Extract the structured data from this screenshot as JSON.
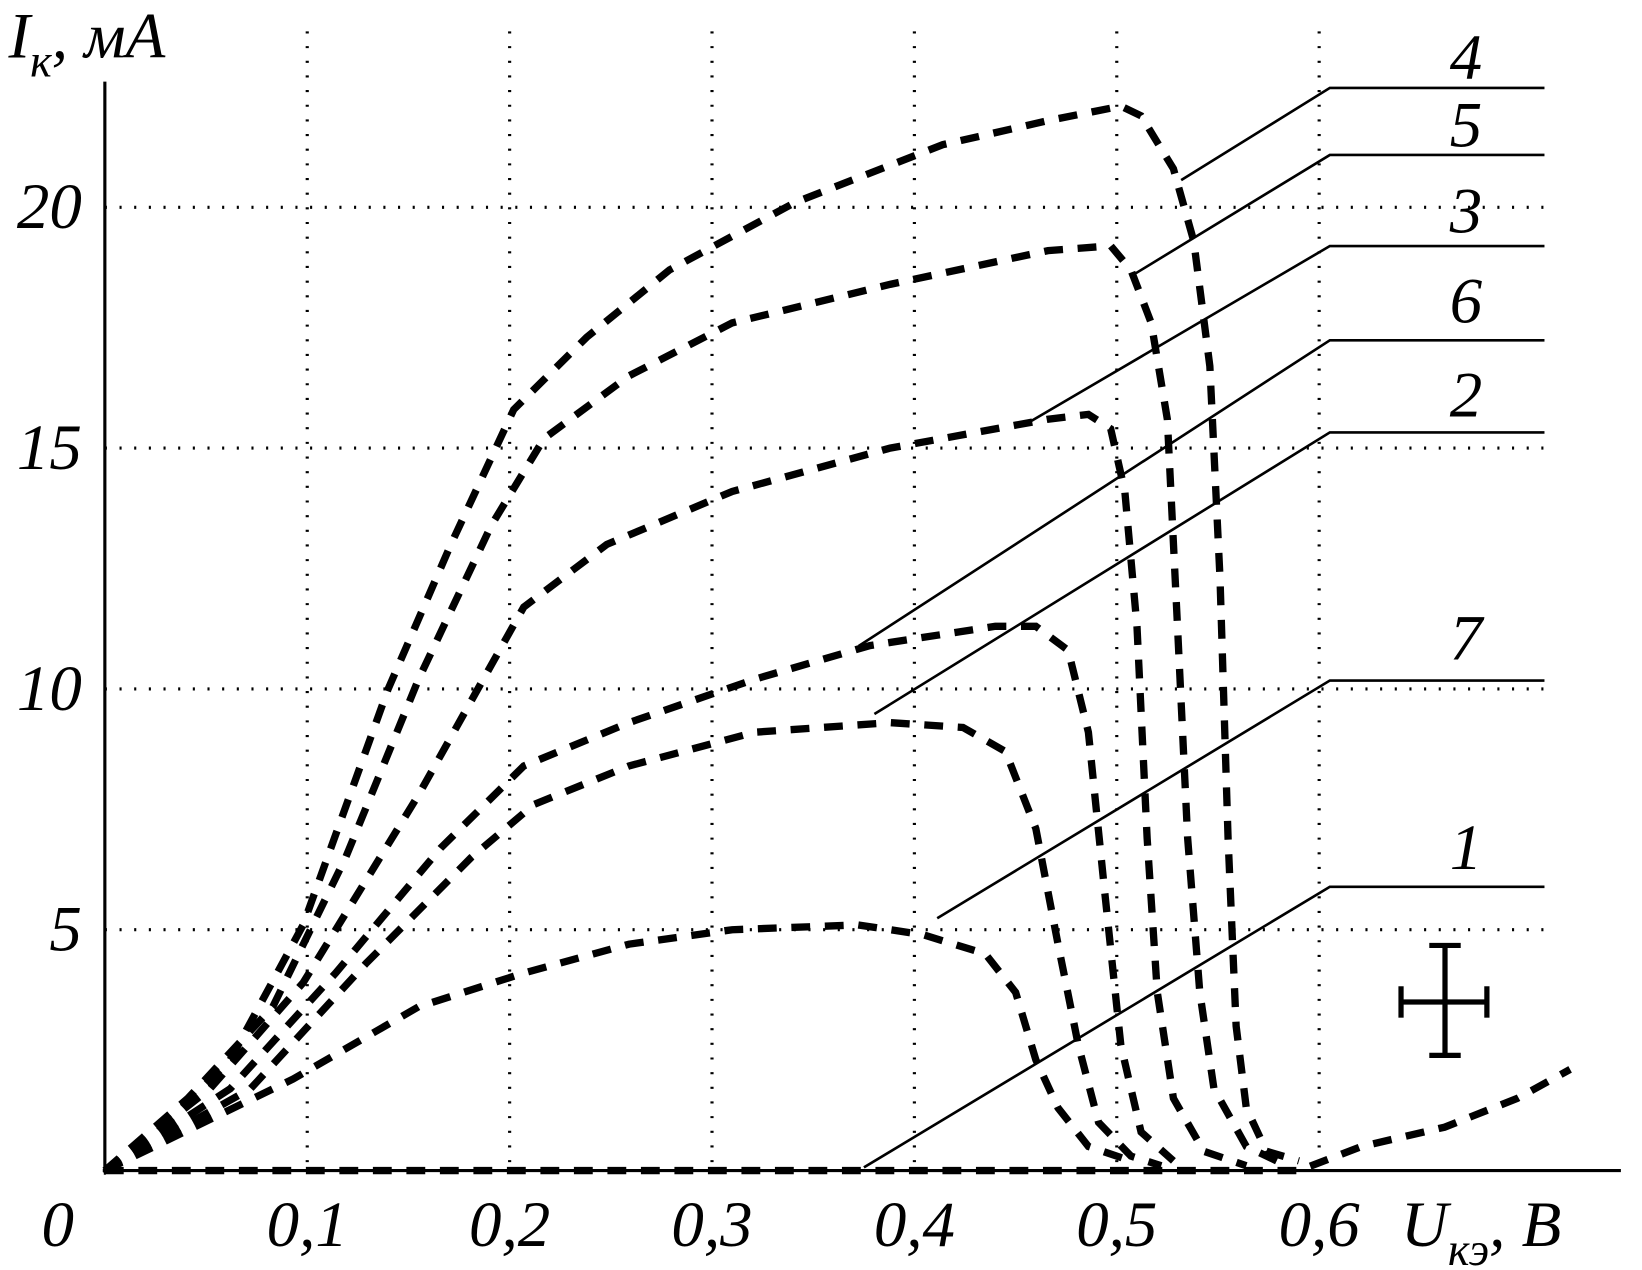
{
  "chart_data": {
    "type": "line",
    "ylabel": {
      "main": "I",
      "sub": "к",
      "unit": ", мА"
    },
    "xlabel": {
      "main": "U",
      "sub": "кэ",
      "unit": ", В"
    },
    "xlim": [
      0,
      0.75
    ],
    "ylim": [
      0,
      22.5
    ],
    "xticks": [
      0,
      {
        "value": 0.1,
        "label": "0,1"
      },
      {
        "value": 0.2,
        "label": "0,2"
      },
      {
        "value": 0.3,
        "label": "0,3"
      },
      {
        "value": 0.4,
        "label": "0,4"
      },
      {
        "value": 0.5,
        "label": "0,5"
      },
      {
        "value": 0.6,
        "label": "0,6"
      }
    ],
    "yticks": [
      5,
      10,
      15,
      20
    ],
    "grid": true,
    "dashed": true,
    "series": [
      {
        "name": "4",
        "color": "#000000",
        "x": [
          0,
          0.026,
          0.062,
          0.098,
          0.14,
          0.171,
          0.202,
          0.238,
          0.279,
          0.341,
          0.414,
          0.466,
          0.502,
          0.512,
          0.528,
          0.538,
          0.546,
          0.551,
          0.555,
          0.559,
          0.564,
          0.574,
          0.59
        ],
        "values": [
          0,
          0.8,
          2.3,
          5.1,
          10.0,
          13.0,
          15.8,
          17.3,
          18.7,
          20.1,
          21.3,
          21.8,
          22.1,
          21.9,
          20.8,
          19.3,
          16.7,
          12.3,
          6.9,
          3.0,
          1.3,
          0.4,
          0.2
        ]
      },
      {
        "name": "5",
        "color": "#000000",
        "x": [
          0,
          0.041,
          0.083,
          0.119,
          0.155,
          0.191,
          0.217,
          0.259,
          0.31,
          0.388,
          0.466,
          0.497,
          0.507,
          0.517,
          0.525,
          0.53,
          0.535,
          0.541,
          0.548,
          0.564,
          0.579
        ],
        "values": [
          0,
          1.5,
          3.4,
          6.5,
          10.2,
          13.4,
          15.2,
          16.5,
          17.6,
          18.4,
          19.1,
          19.2,
          18.7,
          17.6,
          15.6,
          11.3,
          6.9,
          3.7,
          1.7,
          0.5,
          0.2
        ]
      },
      {
        "name": "3",
        "color": "#000000",
        "x": [
          0,
          0.052,
          0.098,
          0.155,
          0.207,
          0.248,
          0.31,
          0.388,
          0.466,
          0.486,
          0.497,
          0.504,
          0.51,
          0.515,
          0.52,
          0.528,
          0.543,
          0.564
        ],
        "values": [
          0,
          1.7,
          3.9,
          7.8,
          11.7,
          13.0,
          14.1,
          15.0,
          15.6,
          15.7,
          15.4,
          14.1,
          11.3,
          6.9,
          3.7,
          1.5,
          0.4,
          0.1
        ]
      },
      {
        "name": "6",
        "color": "#000000",
        "x": [
          0,
          0.062,
          0.114,
          0.166,
          0.207,
          0.259,
          0.321,
          0.378,
          0.44,
          0.46,
          0.476,
          0.486,
          0.494,
          0.502,
          0.512,
          0.528
        ],
        "values": [
          0,
          1.7,
          4.1,
          6.7,
          8.4,
          9.3,
          10.2,
          10.9,
          11.3,
          11.3,
          10.8,
          9.1,
          5.8,
          2.6,
          0.8,
          0.2
        ]
      },
      {
        "name": "2",
        "color": "#000000",
        "x": [
          0,
          0.072,
          0.129,
          0.181,
          0.212,
          0.259,
          0.321,
          0.388,
          0.424,
          0.445,
          0.46,
          0.471,
          0.481,
          0.491,
          0.507,
          0.522
        ],
        "values": [
          0,
          1.7,
          4.3,
          6.5,
          7.6,
          8.4,
          9.1,
          9.3,
          9.2,
          8.7,
          7.1,
          4.7,
          2.6,
          1.0,
          0.3,
          0.1
        ]
      },
      {
        "name": "7",
        "color": "#000000",
        "x": [
          0,
          0.093,
          0.155,
          0.207,
          0.259,
          0.31,
          0.372,
          0.404,
          0.435,
          0.45,
          0.46,
          0.471,
          0.486,
          0.507
        ],
        "values": [
          0,
          1.9,
          3.4,
          4.1,
          4.7,
          5.0,
          5.1,
          4.9,
          4.5,
          3.7,
          2.3,
          1.3,
          0.5,
          0.2
        ]
      },
      {
        "name": "1",
        "color": "#000000",
        "x": [
          0,
          0.2,
          0.4,
          0.59,
          0.621,
          0.662,
          0.698,
          0.724
        ],
        "values": [
          0,
          0,
          0,
          0,
          0.5,
          0.9,
          1.5,
          2.1
        ]
      }
    ]
  }
}
